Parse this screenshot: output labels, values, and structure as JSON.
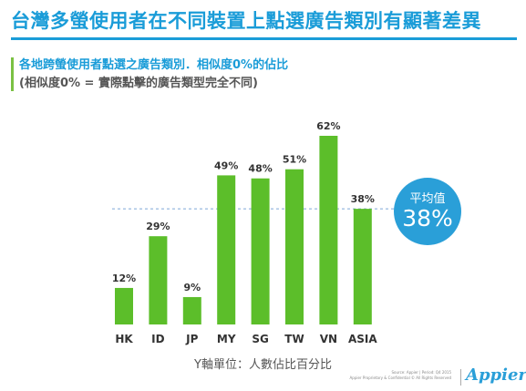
{
  "page": {
    "title": "台灣多螢使用者在不同裝置上點選廣告類別有顯著差異",
    "subtitle_line1": "各地跨螢使用者點選之廣告類別．相似度0%的佔比",
    "subtitle_line2": "(相似度0% = 實際點擊的廣告類型完全不同)",
    "average_badge": {
      "label": "平均值",
      "value": "38%"
    },
    "y_unit_note": "Y軸單位：人數佔比百分比",
    "source_line1": "Source: Appier | Period: Q4 2015",
    "source_line2": "Appier Proprietary & Confidential © All Rights Reserved",
    "logo": "Appier"
  },
  "colors": {
    "title": "#1a9cd8",
    "bar": "#5cbe2a",
    "average_line": "#7da6d6",
    "average_badge": "#2a9fd8",
    "accent": "#7ac143"
  },
  "chart_data": {
    "type": "bar",
    "categories": [
      "HK",
      "ID",
      "JP",
      "MY",
      "SG",
      "TW",
      "VN",
      "ASIA"
    ],
    "values": [
      12,
      29,
      9,
      49,
      48,
      51,
      62,
      38
    ],
    "data_labels": [
      "12%",
      "29%",
      "9%",
      "49%",
      "48%",
      "51%",
      "62%",
      "38%"
    ],
    "average": 38,
    "ylim": [
      0,
      62
    ],
    "grid": false,
    "legend": "none"
  }
}
